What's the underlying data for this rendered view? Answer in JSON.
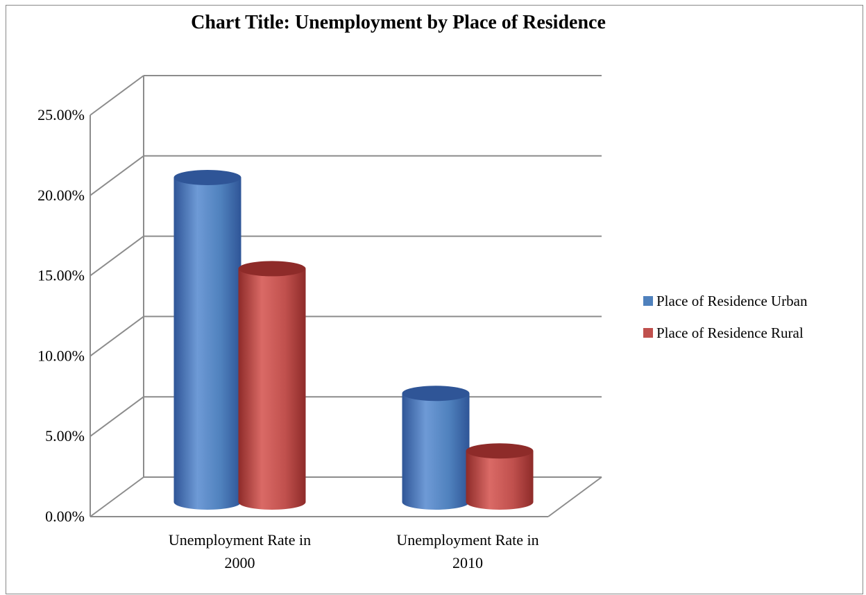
{
  "chart_data": {
    "type": "bar",
    "style": "3d-cylinder",
    "title": "Chart Title: Unemployment by Place of Residence",
    "categories": [
      [
        "Unemployment Rate in",
        "2000"
      ],
      [
        "Unemployment Rate in",
        "2010"
      ]
    ],
    "series": [
      {
        "name": "Place of Residence Urban",
        "values": [
          20.3,
          6.8
        ],
        "color": "#4F81BD",
        "color_dark": "#2F5597",
        "color_light": "#6E9AD6"
      },
      {
        "name": "Place of Residence Rural",
        "values": [
          14.6,
          3.2
        ],
        "color": "#C0504D",
        "color_dark": "#8E2B29",
        "color_light": "#DA6A66"
      }
    ],
    "y_ticks": [
      "0.00%",
      "5.00%",
      "10.00%",
      "15.00%",
      "20.00%",
      "25.00%"
    ],
    "ylim": [
      0,
      25
    ],
    "y_unit": "percent",
    "grid": true,
    "legend_position": "right",
    "xlabel": "",
    "ylabel": ""
  }
}
